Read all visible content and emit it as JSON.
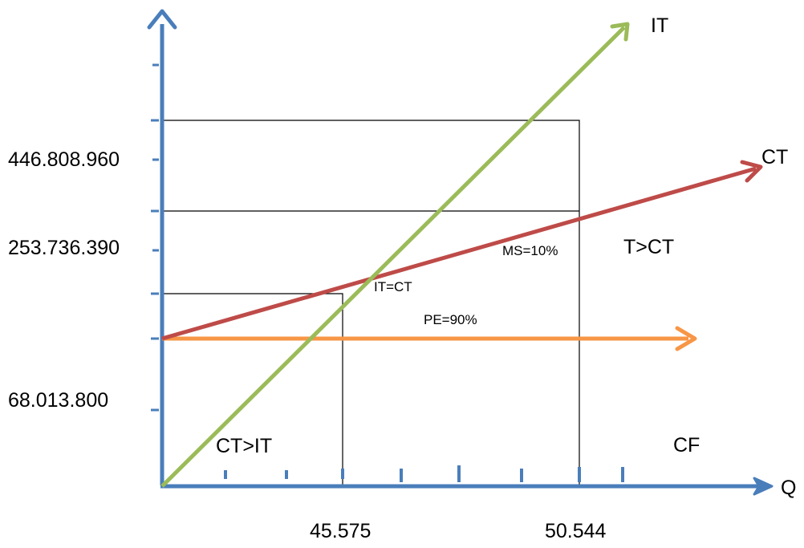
{
  "colors": {
    "axis": "#4a7ebb",
    "income_line": "#9bbb59",
    "cost_line": "#be4b48",
    "fixed_cost_line": "#f79646",
    "guide_line": "#000000",
    "text": "#000000"
  },
  "axes": {
    "y_labels": {
      "upper": "446.808.960",
      "middle": "253.736.390",
      "lower": "68.013.800"
    },
    "x_labels": {
      "first": "45.575",
      "second": "50.544"
    },
    "x_axis_label": "Q"
  },
  "lines": {
    "income": "IT",
    "cost": "CT",
    "fixed_cost": "CF"
  },
  "annotations": {
    "break_even": "IT=CT",
    "pe": "PE=90%",
    "ms": "MS=10%",
    "profit_zone": "T>CT",
    "loss_zone": "CT>IT"
  }
}
